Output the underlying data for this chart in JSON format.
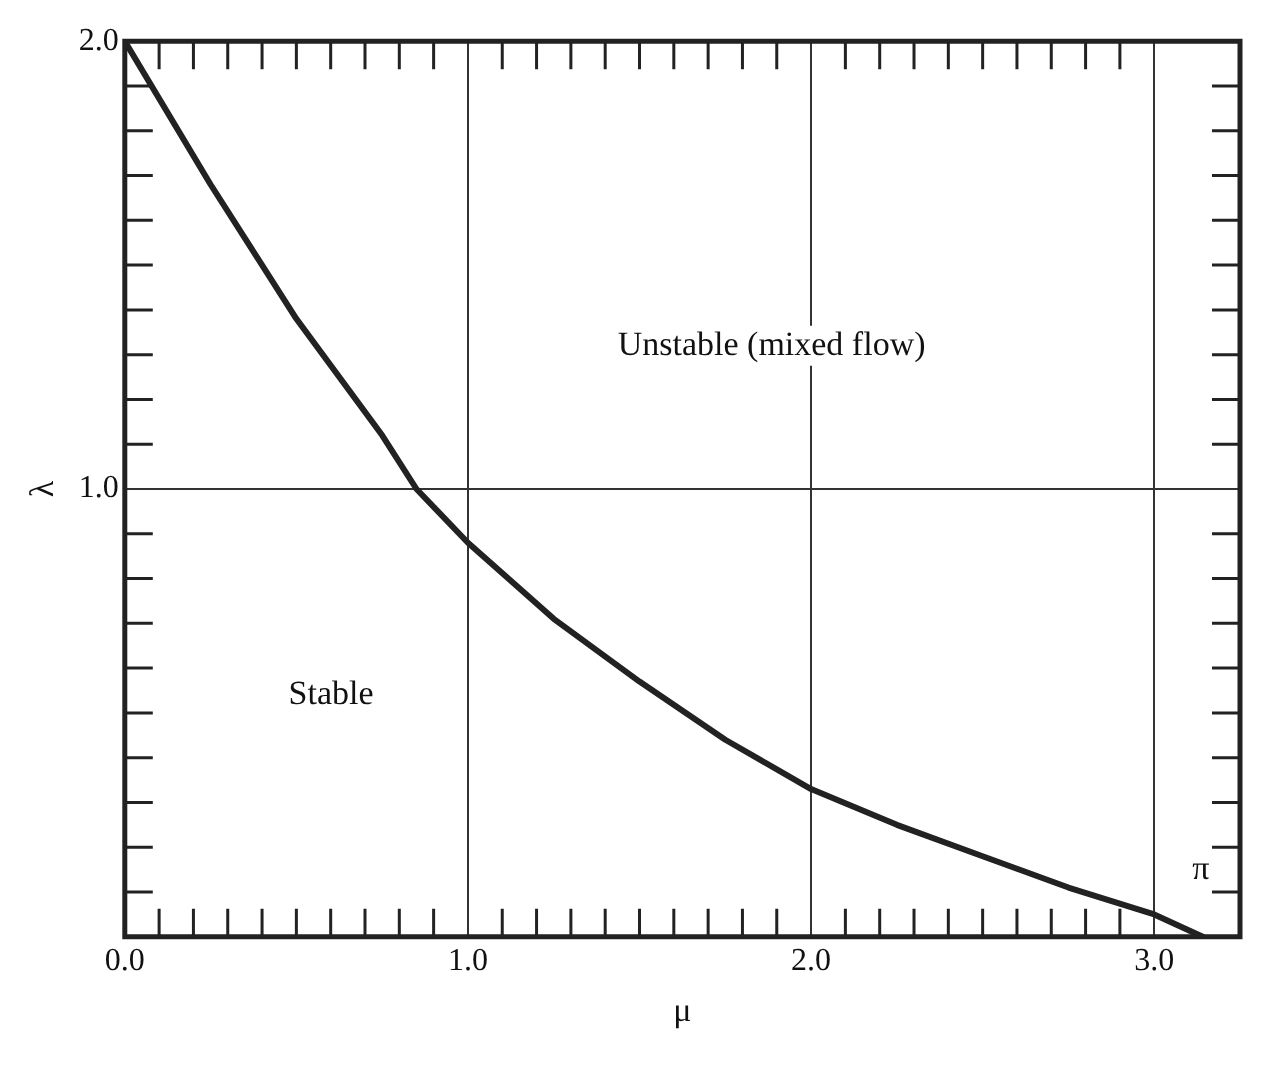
{
  "chart_data": {
    "type": "line",
    "xlabel": "μ",
    "ylabel": "λ",
    "x": [
      0,
      0.25,
      0.5,
      0.75,
      0.85,
      1,
      1.25,
      1.5,
      1.75,
      2,
      2.25,
      2.5,
      2.75,
      3,
      3.1416
    ],
    "series": [
      {
        "color": "#222222",
        "values": [
          2,
          1.68,
          1.38,
          1.12,
          1.0,
          0.88,
          0.71,
          0.57,
          0.44,
          0.33,
          0.25,
          0.18,
          0.11,
          0.05,
          0
        ]
      }
    ],
    "xlim": [
      0,
      3.25
    ],
    "ylim": [
      0,
      2
    ],
    "xticks": [
      {
        "value": 0,
        "label": "0.0"
      },
      {
        "value": 0.1,
        "label": null
      },
      {
        "value": 0.2,
        "label": null
      },
      {
        "value": 0.3,
        "label": null
      },
      {
        "value": 0.4,
        "label": null
      },
      {
        "value": 0.5,
        "label": null
      },
      {
        "value": 0.6,
        "label": null
      },
      {
        "value": 0.7,
        "label": null
      },
      {
        "value": 0.8,
        "label": null
      },
      {
        "value": 0.9,
        "label": null
      },
      {
        "value": 1,
        "label": "1.0"
      },
      {
        "value": 1.1,
        "label": null
      },
      {
        "value": 1.2,
        "label": null
      },
      {
        "value": 1.3,
        "label": null
      },
      {
        "value": 1.4,
        "label": null
      },
      {
        "value": 1.5,
        "label": null
      },
      {
        "value": 1.6,
        "label": null
      },
      {
        "value": 1.7,
        "label": null
      },
      {
        "value": 1.8,
        "label": null
      },
      {
        "value": 1.9,
        "label": null
      },
      {
        "value": 2,
        "label": "2.0"
      },
      {
        "value": 2.1,
        "label": null
      },
      {
        "value": 2.2,
        "label": null
      },
      {
        "value": 2.3,
        "label": null
      },
      {
        "value": 2.4,
        "label": null
      },
      {
        "value": 2.5,
        "label": null
      },
      {
        "value": 2.6,
        "label": null
      },
      {
        "value": 2.7,
        "label": null
      },
      {
        "value": 2.8,
        "label": null
      },
      {
        "value": 2.9,
        "label": null
      },
      {
        "value": 3,
        "label": "3.0"
      }
    ],
    "yticks": [
      {
        "value": 0,
        "label": null
      },
      {
        "value": 0.1,
        "label": null
      },
      {
        "value": 0.2,
        "label": null
      },
      {
        "value": 0.3,
        "label": null
      },
      {
        "value": 0.4,
        "label": null
      },
      {
        "value": 0.5,
        "label": null
      },
      {
        "value": 0.6,
        "label": null
      },
      {
        "value": 0.7,
        "label": null
      },
      {
        "value": 0.8,
        "label": null
      },
      {
        "value": 0.9,
        "label": null
      },
      {
        "value": 1,
        "label": "1.0"
      },
      {
        "value": 1.1,
        "label": null
      },
      {
        "value": 1.2,
        "label": null
      },
      {
        "value": 1.3,
        "label": null
      },
      {
        "value": 1.4,
        "label": null
      },
      {
        "value": 1.5,
        "label": null
      },
      {
        "value": 1.6,
        "label": null
      },
      {
        "value": 1.7,
        "label": null
      },
      {
        "value": 1.8,
        "label": null
      },
      {
        "value": 1.9,
        "label": null
      },
      {
        "value": 2,
        "label": "2.0"
      }
    ],
    "grid": true,
    "legend": false,
    "marker": "none",
    "line_style": "solid",
    "annotations": [
      "Unstable (mixed flow)",
      "Stable",
      "π"
    ]
  }
}
